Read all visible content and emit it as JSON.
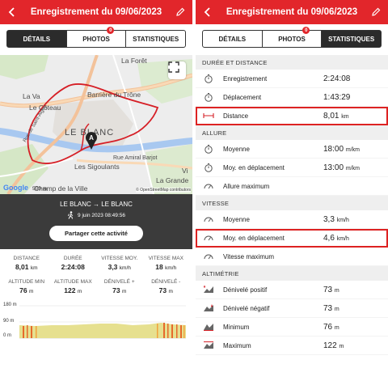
{
  "header": {
    "title": "Enregistrement du 09/06/2023"
  },
  "tabs": [
    {
      "label": "DÉTAILS"
    },
    {
      "label": "PHOTOS",
      "badge": "0"
    },
    {
      "label": "STATISTIQUES"
    }
  ],
  "map": {
    "labels": [
      "La Forêt",
      "Barrière du Trône",
      "La Va",
      "Le Côteau",
      "LE BLANC",
      "Rue Amiral Barjot",
      "Les Sigoulants",
      "Champ de la Ville",
      "La Grande",
      "Rue de Saint-Aigny",
      "Vi"
    ],
    "google": "Google",
    "scale": "500 m",
    "copyright": "© OpenStreetMap contributors"
  },
  "activity": {
    "route": "LE BLANC → LE BLANC",
    "datetime": "9 juin 2023 08:49:56",
    "share_label": "Partager cette activité"
  },
  "summary": [
    {
      "label": "DISTANCE",
      "value": "8,01",
      "unit": "km"
    },
    {
      "label": "DURÉE",
      "value": "2:24:08",
      "unit": ""
    },
    {
      "label": "VITESSE MOY.",
      "value": "3,3",
      "unit": "km/h"
    },
    {
      "label": "VITESSE MAX",
      "value": "18",
      "unit": "km/h"
    },
    {
      "label": "ALTITUDE MIN",
      "value": "76",
      "unit": "m"
    },
    {
      "label": "ALTITUDE MAX",
      "value": "122",
      "unit": "m"
    },
    {
      "label": "DÉNIVELÉ +",
      "value": "73",
      "unit": "m"
    },
    {
      "label": "DÉNIVELÉ -",
      "value": "73",
      "unit": "m"
    }
  ],
  "elevation_axis": [
    "180 m",
    "90 m",
    "0 m"
  ],
  "right_panel": {
    "sections": [
      {
        "title": "DURÉE ET DISTANCE",
        "rows": [
          {
            "icon": "stopwatch-icon",
            "label": "Enregistrement",
            "value": "2:24:08",
            "unit": "",
            "highlight": false
          },
          {
            "icon": "stopwatch-icon",
            "label": "Déplacement",
            "value": "1:43:29",
            "unit": "",
            "highlight": false
          },
          {
            "icon": "distance-icon",
            "label": "Distance",
            "value": "8,01",
            "unit": "km",
            "highlight": true
          }
        ]
      },
      {
        "title": "ALLURE",
        "rows": [
          {
            "icon": "stopwatch-icon",
            "label": "Moyenne",
            "value": "18:00",
            "unit": "m/km",
            "highlight": false
          },
          {
            "icon": "stopwatch-icon",
            "label": "Moy. en déplacement",
            "value": "13:00",
            "unit": "m/km",
            "highlight": false
          },
          {
            "icon": "gauge-icon",
            "label": "Allure maximum",
            "value": "",
            "unit": "",
            "highlight": false
          }
        ]
      },
      {
        "title": "VITESSE",
        "rows": [
          {
            "icon": "gauge-icon",
            "label": "Moyenne",
            "value": "3,3",
            "unit": "km/h",
            "highlight": false
          },
          {
            "icon": "gauge-icon",
            "label": "Moy. en déplacement",
            "value": "4,6",
            "unit": "km/h",
            "highlight": true
          },
          {
            "icon": "gauge-icon",
            "label": "Vitesse maximum",
            "value": "",
            "unit": "",
            "highlight": false
          }
        ]
      },
      {
        "title": "ALTIMÉTRIE",
        "rows": [
          {
            "icon": "elevation-up-icon",
            "label": "Dénivelé positif",
            "value": "73",
            "unit": "m",
            "highlight": false
          },
          {
            "icon": "elevation-down-icon",
            "label": "Dénivelé négatif",
            "value": "73",
            "unit": "m",
            "highlight": false
          },
          {
            "icon": "elevation-min-icon",
            "label": "Minimum",
            "value": "76",
            "unit": "m",
            "highlight": false
          },
          {
            "icon": "elevation-max-icon",
            "label": "Maximum",
            "value": "122",
            "unit": "m",
            "highlight": false
          }
        ]
      }
    ]
  },
  "colors": {
    "accent": "#e2262b",
    "dark": "#3b3b3b"
  }
}
